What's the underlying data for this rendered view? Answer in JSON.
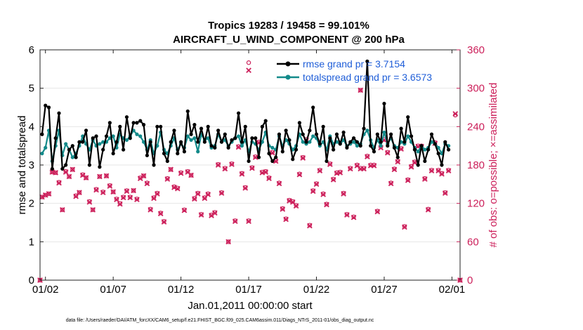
{
  "chart_data": {
    "type": "line",
    "title_line1": "Tropics 19283 / 19458 = 99.101%",
    "title_line2": "AIRCRAFT_U_WIND_COMPONENT @ 200 hPa",
    "xlabel": "Jan.01,2011 00:00:00 start",
    "ylabel_left": "rmse and totalspread",
    "ylabel_right": "# of obs: o=possible; ×=assimilated",
    "xlim": [
      0.6,
      31.6
    ],
    "ylim_left": [
      0,
      6
    ],
    "ylim_right": [
      0,
      360
    ],
    "x_ticks": [
      {
        "x": 1,
        "label": "01/02"
      },
      {
        "x": 6,
        "label": "01/07"
      },
      {
        "x": 11,
        "label": "01/12"
      },
      {
        "x": 16,
        "label": "01/17"
      },
      {
        "x": 21,
        "label": "01/22"
      },
      {
        "x": 26,
        "label": "01/27"
      },
      {
        "x": 31,
        "label": "02/01"
      }
    ],
    "y_ticks_left": [
      "0",
      "1",
      "2",
      "3",
      "4",
      "5",
      "6"
    ],
    "y_ticks_right": [
      "0",
      "60",
      "120",
      "180",
      "240",
      "300",
      "360"
    ],
    "legend": {
      "placement": "top-right",
      "rmse_label": "rmse grand pr = 3.7154",
      "spread_label": "totalspread grand pr = 3.6573"
    },
    "footnote": "data file: /Users/raeder/DAI/ATM_forcXX/CAM6_setup/f.e21.FHIST_BGC.f09_025.CAM6assim.011/Diags_NTrS_2011-01/obs_diag_output.nc",
    "colors": {
      "rmse": "#000000",
      "spread": "#138a8a",
      "obs": "#cc1f5a",
      "legend_text": "#1f5ed8"
    },
    "x_start": 0.75,
    "x_step": 0.25,
    "rmse": [
      3.8,
      4.55,
      4.5,
      2.9,
      3.7,
      4.35,
      2.9,
      3.0,
      3.4,
      3.5,
      3.2,
      3.6,
      3.6,
      3.9,
      3.0,
      3.7,
      3.75,
      2.95,
      3.4,
      3.75,
      4.1,
      3.3,
      3.6,
      4.0,
      3.4,
      4.25,
      3.7,
      4.1,
      4.1,
      4.15,
      4.05,
      3.25,
      3.6,
      3.0,
      4.0,
      4.0,
      3.3,
      3.1,
      3.6,
      3.9,
      3.3,
      3.6,
      3.35,
      4.4,
      3.8,
      4.05,
      3.6,
      3.95,
      3.6,
      4.0,
      3.5,
      3.45,
      3.9,
      3.6,
      3.8,
      3.45,
      3.65,
      3.7,
      4.35,
      3.6,
      4.0,
      3.1,
      3.7,
      3.7,
      3.2,
      4.0,
      4.15,
      3.3,
      3.1,
      3.2,
      3.8,
      3.35,
      3.9,
      3.65,
      3.15,
      3.4,
      4.1,
      3.8,
      3.6,
      3.9,
      4.5,
      3.8,
      3.55,
      4.0,
      3.1,
      3.7,
      3.4,
      3.8,
      3.55,
      3.85,
      3.45,
      3.6,
      3.7,
      3.6,
      3.5,
      3.95,
      5.7,
      3.5,
      3.35,
      3.8,
      3.6,
      4.6,
      3.5,
      3.8,
      3.45,
      3.2,
      3.95,
      3.6,
      4.25,
      3.75,
      3.4,
      3.0,
      3.5,
      3.1,
      3.4,
      3.8,
      3.55,
      3.3,
      3.0,
      3.6,
      3.4
    ],
    "totalspread": [
      3.3,
      3.45,
      3.9,
      3.1,
      3.5,
      3.9,
      3.25,
      3.55,
      3.4,
      3.2,
      3.3,
      3.5,
      3.75,
      3.55,
      3.4,
      3.65,
      3.5,
      3.55,
      3.6,
      3.6,
      3.7,
      3.75,
      3.45,
      3.8,
      3.7,
      3.65,
      3.75,
      3.9,
      3.8,
      3.75,
      3.6,
      3.4,
      3.65,
      3.3,
      3.5,
      3.85,
      3.4,
      3.3,
      3.5,
      3.7,
      3.4,
      3.55,
      3.45,
      3.75,
      3.65,
      3.7,
      3.35,
      3.8,
      3.65,
      3.7,
      3.45,
      3.5,
      3.8,
      3.6,
      3.65,
      3.5,
      3.6,
      3.7,
      3.75,
      3.5,
      3.65,
      3.35,
      3.6,
      3.55,
      3.4,
      3.6,
      3.85,
      3.5,
      3.45,
      3.4,
      3.75,
      3.5,
      3.65,
      3.55,
      3.4,
      3.5,
      3.8,
      3.6,
      3.55,
      3.6,
      3.75,
      3.7,
      3.5,
      3.6,
      3.4,
      3.75,
      3.55,
      3.6,
      3.55,
      3.65,
      3.5,
      3.55,
      3.6,
      3.5,
      3.55,
      3.8,
      3.9,
      3.65,
      3.45,
      3.65,
      3.5,
      3.85,
      3.55,
      3.7,
      3.5,
      3.45,
      3.6,
      3.55,
      3.75,
      3.6,
      3.45,
      3.35,
      3.5,
      3.4,
      3.45,
      3.6,
      3.55,
      3.45,
      3.3,
      3.55,
      3.5
    ],
    "obs_possible": [
      130,
      133,
      135,
      169,
      168,
      153,
      110,
      170,
      162,
      173,
      132,
      137,
      165,
      160,
      123,
      110,
      142,
      162,
      138,
      163,
      148,
      138,
      127,
      120,
      130,
      140,
      130,
      140,
      127,
      160,
      163,
      152,
      111,
      129,
      136,
      105,
      92,
      159,
      173,
      146,
      144,
      168,
      110,
      170,
      164,
      128,
      136,
      103,
      129,
      135,
      102,
      106,
      181,
      137,
      175,
      60,
      182,
      93,
      209,
      167,
      145,
      93,
      176,
      193,
      216,
      169,
      170,
      160,
      200,
      187,
      152,
      112,
      96,
      125,
      123,
      117,
      166,
      192,
      220,
      86,
      140,
      151,
      172,
      135,
      119,
      182,
      158,
      168,
      169,
      136,
      103,
      175,
      99,
      180,
      175,
      175,
      194,
      180,
      180,
      108,
      208,
      220,
      200,
      152,
      174,
      186,
      206,
      84,
      157,
      178,
      185,
      210,
      210,
      159,
      111,
      172,
      215,
      172,
      167,
      137,
      172
    ],
    "obs_assimilated": [
      130,
      133,
      135,
      169,
      168,
      152,
      110,
      169,
      162,
      173,
      131,
      137,
      164,
      160,
      122,
      110,
      141,
      162,
      137,
      163,
      147,
      138,
      126,
      119,
      129,
      139,
      129,
      140,
      126,
      159,
      163,
      151,
      110,
      128,
      135,
      104,
      91,
      158,
      173,
      145,
      143,
      167,
      109,
      169,
      164,
      127,
      135,
      102,
      128,
      134,
      101,
      105,
      180,
      136,
      174,
      60,
      181,
      92,
      208,
      166,
      144,
      92,
      175,
      192,
      215,
      168,
      169,
      159,
      199,
      186,
      151,
      111,
      95,
      124,
      122,
      116,
      165,
      191,
      219,
      85,
      139,
      150,
      171,
      134,
      118,
      181,
      157,
      167,
      168,
      135,
      102,
      174,
      98,
      179,
      174,
      174,
      193,
      179,
      179,
      107,
      207,
      219,
      199,
      151,
      173,
      185,
      205,
      83,
      156,
      177,
      184,
      209,
      209,
      158,
      110,
      171,
      214,
      171,
      166,
      136,
      171
    ],
    "obs_outliers": [
      {
        "x": 16.0,
        "possible": 340,
        "assimilated": 328
      },
      {
        "x": 24.25,
        "possible": 297,
        "assimilated": 297
      },
      {
        "x": 31.25,
        "possible": 258,
        "assimilated": 260
      },
      {
        "x": 0.6,
        "possible": 0,
        "assimilated": 0
      },
      {
        "x": 31.6,
        "possible": 0,
        "assimilated": 0
      }
    ]
  }
}
